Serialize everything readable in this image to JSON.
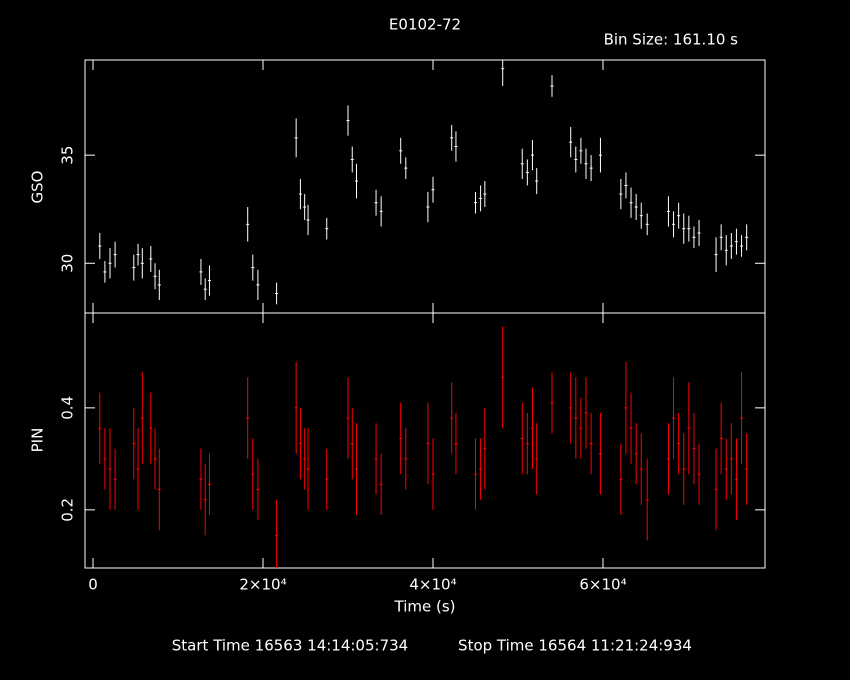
{
  "chart_data": [
    {
      "type": "scatter",
      "title": "E0102-72",
      "annotation": "Bin Size: 161.10 s",
      "ylabel": "GSO",
      "xlim": [
        -941,
        79059
      ],
      "ylim": [
        27.7,
        39.4
      ],
      "yticks": [
        30,
        35
      ],
      "x": [
        800,
        1400,
        2000,
        2600,
        4800,
        5300,
        5800,
        6800,
        7300,
        7800,
        12700,
        13200,
        13700,
        18200,
        18800,
        19400,
        21600,
        23900,
        24400,
        24900,
        25300,
        27500,
        30000,
        30500,
        31000,
        33300,
        33900,
        36200,
        36800,
        39400,
        40000,
        42200,
        42700,
        45000,
        45600,
        46100,
        48200,
        50500,
        51100,
        51700,
        52200,
        54000,
        56200,
        56800,
        57400,
        58000,
        58600,
        59700,
        62100,
        62700,
        63300,
        63900,
        64500,
        65200,
        67700,
        68300,
        68900,
        69500,
        70100,
        70700,
        71300,
        73300,
        73900,
        74500,
        75100,
        75700,
        76300,
        76900
      ],
      "series": [
        {
          "name": "GSO",
          "color": "#ffffff",
          "values": [
            30.8,
            29.6,
            30.0,
            30.4,
            29.8,
            30.4,
            30.0,
            30.2,
            29.4,
            29.0,
            29.6,
            28.8,
            29.2,
            31.8,
            29.8,
            29.0,
            28.6,
            35.8,
            33.2,
            32.6,
            32.0,
            31.6,
            36.6,
            34.8,
            33.8,
            32.8,
            32.4,
            35.2,
            34.4,
            32.6,
            33.4,
            35.8,
            35.4,
            32.8,
            33.0,
            33.2,
            39.0,
            34.6,
            34.2,
            35.0,
            33.8,
            38.2,
            35.6,
            34.8,
            35.2,
            34.6,
            34.4,
            35.0,
            33.2,
            33.6,
            32.8,
            32.6,
            32.2,
            31.8,
            32.4,
            31.8,
            32.2,
            31.6,
            31.6,
            31.2,
            31.4,
            30.4,
            31.2,
            30.6,
            30.8,
            31.0,
            30.8,
            31.2
          ],
          "errors": [
            0.6,
            0.5,
            0.7,
            0.6,
            0.6,
            0.5,
            0.7,
            0.6,
            0.6,
            0.7,
            0.6,
            0.5,
            0.7,
            0.8,
            0.6,
            0.7,
            0.5,
            0.9,
            0.7,
            0.6,
            0.7,
            0.5,
            0.7,
            0.6,
            0.8,
            0.6,
            0.7,
            0.6,
            0.5,
            0.7,
            0.6,
            0.6,
            0.7,
            0.5,
            0.6,
            0.6,
            0.8,
            0.7,
            0.6,
            0.7,
            0.6,
            0.5,
            0.7,
            0.6,
            0.6,
            0.7,
            0.6,
            0.8,
            0.7,
            0.6,
            0.7,
            0.6,
            0.6,
            0.5,
            0.7,
            0.6,
            0.6,
            0.7,
            0.6,
            0.5,
            0.6,
            0.8,
            0.6,
            0.7,
            0.6,
            0.6,
            0.5,
            0.6
          ]
        }
      ]
    },
    {
      "type": "scatter",
      "ylabel": "PIN",
      "xlabel": "Time (s)",
      "xlim": [
        -941,
        79059
      ],
      "ylim": [
        0.086,
        0.586
      ],
      "yticks": [
        0.2,
        0.4
      ],
      "xticks": [
        0,
        {
          "value": 20000,
          "label": "2×10⁴"
        },
        {
          "value": 40000,
          "label": "4×10⁴"
        },
        {
          "value": 60000,
          "label": "6×10⁴"
        }
      ],
      "x": [
        800,
        1400,
        2000,
        2600,
        4800,
        5300,
        5800,
        6800,
        7300,
        7800,
        12700,
        13200,
        13700,
        18200,
        18800,
        19400,
        21600,
        23900,
        24400,
        24900,
        25300,
        27500,
        30000,
        30500,
        31000,
        33300,
        33900,
        36200,
        36800,
        39400,
        40000,
        42200,
        42700,
        45000,
        45600,
        46100,
        48200,
        50500,
        51100,
        51700,
        52200,
        54000,
        56200,
        56800,
        57400,
        58000,
        58600,
        59700,
        62100,
        62700,
        63300,
        63900,
        64500,
        65200,
        67700,
        68300,
        68900,
        69500,
        70100,
        70700,
        71300,
        73300,
        73900,
        74500,
        75100,
        75700,
        76300,
        76900
      ],
      "series": [
        {
          "name": "PIN",
          "color": "#ff0000",
          "values": [
            0.36,
            0.3,
            0.28,
            0.26,
            0.33,
            0.28,
            0.38,
            0.36,
            0.3,
            0.24,
            0.26,
            0.22,
            0.25,
            0.38,
            0.27,
            0.24,
            0.15,
            0.4,
            0.33,
            0.3,
            0.28,
            0.26,
            0.38,
            0.33,
            0.28,
            0.3,
            0.25,
            0.34,
            0.3,
            0.33,
            0.27,
            0.38,
            0.33,
            0.27,
            0.28,
            0.32,
            0.46,
            0.34,
            0.33,
            0.36,
            0.3,
            0.41,
            0.4,
            0.38,
            0.36,
            0.39,
            0.33,
            0.31,
            0.26,
            0.4,
            0.36,
            0.31,
            0.28,
            0.22,
            0.3,
            0.38,
            0.33,
            0.28,
            0.36,
            0.32,
            0.27,
            0.24,
            0.34,
            0.28,
            0.3,
            0.26,
            0.38,
            0.28
          ],
          "errors": [
            0.07,
            0.06,
            0.08,
            0.06,
            0.07,
            0.08,
            0.09,
            0.07,
            0.06,
            0.08,
            0.06,
            0.07,
            0.06,
            0.08,
            0.07,
            0.06,
            0.07,
            0.09,
            0.07,
            0.06,
            0.08,
            0.06,
            0.08,
            0.07,
            0.09,
            0.07,
            0.06,
            0.07,
            0.06,
            0.08,
            0.07,
            0.07,
            0.06,
            0.07,
            0.06,
            0.08,
            0.1,
            0.07,
            0.06,
            0.08,
            0.07,
            0.06,
            0.07,
            0.08,
            0.06,
            0.07,
            0.06,
            0.08,
            0.07,
            0.09,
            0.07,
            0.06,
            0.07,
            0.08,
            0.07,
            0.08,
            0.06,
            0.07,
            0.09,
            0.07,
            0.06,
            0.08,
            0.07,
            0.06,
            0.07,
            0.08,
            0.09,
            0.07
          ]
        }
      ]
    }
  ],
  "footer": {
    "start": "Start Time 16563 14:14:05:734",
    "stop": "Stop Time 16564 11:21:24:934"
  }
}
